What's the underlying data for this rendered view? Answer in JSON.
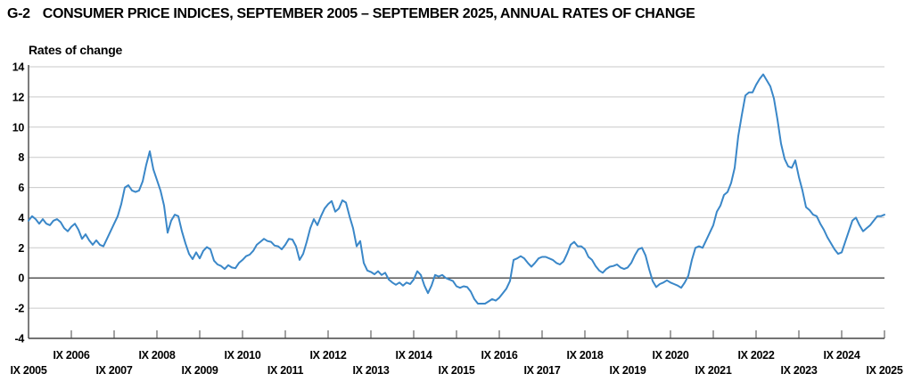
{
  "header": {
    "code": "G-2",
    "title": "CONSUMER PRICE INDICES, SEPTEMBER 2005 – SEPTEMBER 2025, ANNUAL RATES OF CHANGE"
  },
  "chart": {
    "y_axis_title": "Rates of change"
  },
  "chart_data": {
    "type": "line",
    "title": "G-2 Consumer price indices, September 2005 – September 2025, annual rates of change",
    "ylabel": "Rates of change",
    "frequency": "monthly",
    "x_start": "IX 2005",
    "x_end": "IX 2025",
    "ylim": [
      -4,
      14
    ],
    "y_ticks": [
      14,
      12,
      10,
      8,
      6,
      4,
      2,
      0,
      -2,
      -4
    ],
    "x_tick_labels": [
      "IX 2005",
      "IX 2006",
      "IX 2007",
      "IX 2008",
      "IX 2009",
      "IX 2010",
      "IX 2011",
      "IX 2012",
      "IX 2013",
      "IX 2014",
      "IX 2015",
      "IX 2016",
      "IX 2017",
      "IX 2018",
      "IX 2019",
      "IX 2020",
      "IX 2021",
      "IX 2022",
      "IX 2023",
      "IX 2024",
      "IX 2025"
    ],
    "grid": "horizontal",
    "legend": "none",
    "line_color": "#3A87C8",
    "grid_color": "#C9C9C9",
    "axis_color": "#454545",
    "values": [
      3.8,
      4.1,
      3.9,
      3.6,
      3.9,
      3.6,
      3.5,
      3.8,
      3.9,
      3.7,
      3.3,
      3.1,
      3.4,
      3.6,
      3.2,
      2.6,
      2.9,
      2.5,
      2.2,
      2.5,
      2.2,
      2.1,
      2.6,
      3.1,
      3.6,
      4.1,
      4.9,
      6.0,
      6.15,
      5.8,
      5.7,
      5.8,
      6.4,
      7.5,
      8.4,
      7.2,
      6.5,
      5.8,
      4.8,
      3.0,
      3.8,
      4.2,
      4.1,
      3.1,
      2.3,
      1.6,
      1.25,
      1.7,
      1.3,
      1.8,
      2.05,
      1.9,
      1.15,
      0.9,
      0.8,
      0.6,
      0.85,
      0.7,
      0.65,
      1.0,
      1.2,
      1.45,
      1.55,
      1.8,
      2.2,
      2.4,
      2.6,
      2.45,
      2.4,
      2.15,
      2.1,
      1.9,
      2.2,
      2.6,
      2.55,
      2.1,
      1.2,
      1.6,
      2.4,
      3.3,
      3.9,
      3.5,
      4.1,
      4.6,
      4.9,
      5.1,
      4.4,
      4.6,
      5.15,
      5.0,
      4.1,
      3.3,
      2.1,
      2.45,
      1.0,
      0.5,
      0.4,
      0.25,
      0.45,
      0.2,
      0.35,
      -0.1,
      -0.3,
      -0.45,
      -0.3,
      -0.5,
      -0.3,
      -0.4,
      -0.1,
      0.45,
      0.2,
      -0.5,
      -1.0,
      -0.5,
      0.2,
      0.1,
      0.2,
      0.0,
      -0.1,
      -0.2,
      -0.55,
      -0.65,
      -0.55,
      -0.6,
      -0.9,
      -1.4,
      -1.7,
      -1.7,
      -1.7,
      -1.55,
      -1.4,
      -1.5,
      -1.3,
      -1.0,
      -0.7,
      -0.2,
      1.2,
      1.3,
      1.45,
      1.3,
      1.0,
      0.75,
      1.0,
      1.3,
      1.4,
      1.4,
      1.3,
      1.2,
      1.0,
      0.9,
      1.1,
      1.6,
      2.2,
      2.4,
      2.1,
      2.1,
      1.9,
      1.4,
      1.2,
      0.8,
      0.5,
      0.35,
      0.6,
      0.75,
      0.8,
      0.9,
      0.7,
      0.6,
      0.7,
      1.0,
      1.5,
      1.9,
      2.0,
      1.5,
      0.6,
      -0.2,
      -0.6,
      -0.4,
      -0.3,
      -0.15,
      -0.3,
      -0.4,
      -0.5,
      -0.65,
      -0.3,
      0.15,
      1.2,
      2.0,
      2.1,
      2.0,
      2.5,
      3.0,
      3.5,
      4.4,
      4.8,
      5.5,
      5.7,
      6.3,
      7.3,
      9.4,
      10.8,
      12.1,
      12.3,
      12.3,
      12.8,
      13.2,
      13.5,
      13.1,
      12.7,
      11.9,
      10.5,
      8.9,
      7.9,
      7.4,
      7.3,
      7.8,
      6.7,
      5.8,
      4.7,
      4.5,
      4.2,
      4.1,
      3.6,
      3.2,
      2.7,
      2.3,
      1.9,
      1.6,
      1.7,
      2.4,
      3.1,
      3.8,
      4.0,
      3.5,
      3.1,
      3.3,
      3.5,
      3.8,
      4.1,
      4.1,
      4.2
    ]
  }
}
